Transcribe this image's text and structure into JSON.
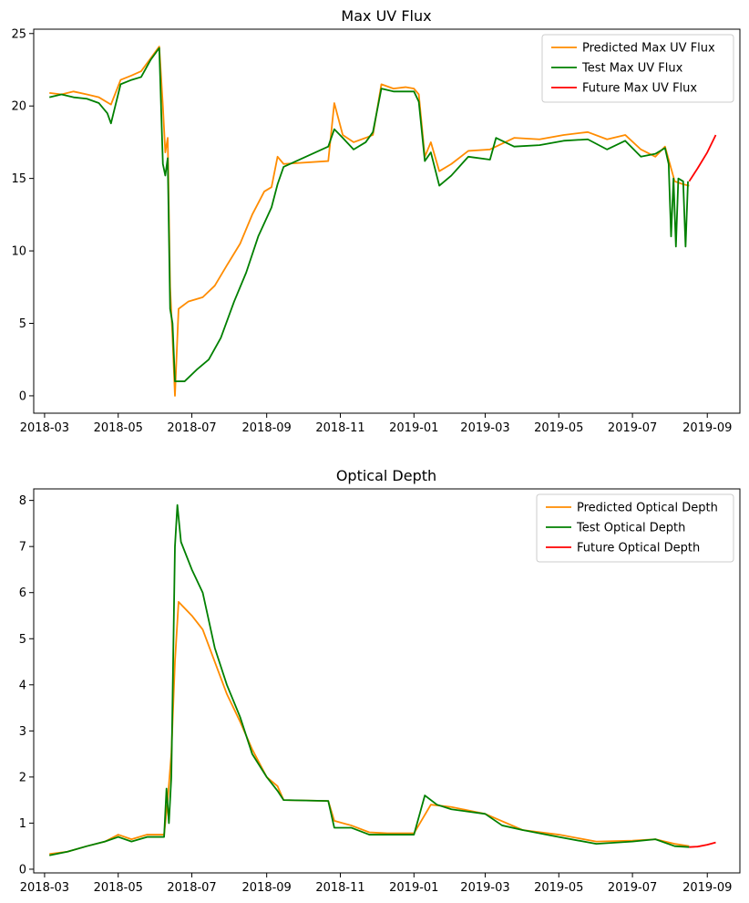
{
  "figure": {
    "charts": [
      {
        "key": "uv",
        "title": "Max UV Flux"
      },
      {
        "key": "od",
        "title": "Optical Depth"
      }
    ]
  },
  "chart_data": [
    {
      "type": "line",
      "title": "Max UV Flux",
      "xlabel": "",
      "ylabel": "",
      "x_axis": "date",
      "xlim": [
        "2018-02-20",
        "2019-09-28"
      ],
      "ylim": [
        -1.2,
        25.3
      ],
      "xticks": [
        "2018-03",
        "2018-05",
        "2018-07",
        "2018-09",
        "2018-11",
        "2019-01",
        "2019-03",
        "2019-05",
        "2019-07",
        "2019-09"
      ],
      "yticks": [
        0,
        5,
        10,
        15,
        20,
        25
      ],
      "legend": "top-right",
      "grid": false,
      "series": [
        {
          "name": "Predicted Max UV Flux",
          "color": "#ff8c00",
          "points": [
            [
              "2018-03-05",
              20.9
            ],
            [
              "2018-03-15",
              20.8
            ],
            [
              "2018-03-25",
              21.0
            ],
            [
              "2018-04-05",
              20.8
            ],
            [
              "2018-04-15",
              20.6
            ],
            [
              "2018-04-25",
              20.1
            ],
            [
              "2018-05-03",
              21.8
            ],
            [
              "2018-05-12",
              22.1
            ],
            [
              "2018-05-20",
              22.4
            ],
            [
              "2018-05-28",
              23.3
            ],
            [
              "2018-06-04",
              24.1
            ],
            [
              "2018-06-07",
              20.0
            ],
            [
              "2018-06-09",
              16.8
            ],
            [
              "2018-06-11",
              17.8
            ],
            [
              "2018-06-13",
              7.5
            ],
            [
              "2018-06-15",
              4.0
            ],
            [
              "2018-06-17",
              0.0
            ],
            [
              "2018-06-20",
              6.0
            ],
            [
              "2018-06-28",
              6.5
            ],
            [
              "2018-07-10",
              6.8
            ],
            [
              "2018-07-20",
              7.6
            ],
            [
              "2018-07-30",
              9.0
            ],
            [
              "2018-08-10",
              10.5
            ],
            [
              "2018-08-20",
              12.5
            ],
            [
              "2018-08-30",
              14.1
            ],
            [
              "2018-09-05",
              14.4
            ],
            [
              "2018-09-10",
              16.5
            ],
            [
              "2018-09-15",
              16.0
            ],
            [
              "2018-10-22",
              16.2
            ],
            [
              "2018-10-27",
              20.2
            ],
            [
              "2018-11-03",
              18.0
            ],
            [
              "2018-11-12",
              17.5
            ],
            [
              "2018-11-22",
              17.8
            ],
            [
              "2018-11-28",
              18.0
            ],
            [
              "2018-12-05",
              21.5
            ],
            [
              "2018-12-15",
              21.2
            ],
            [
              "2018-12-25",
              21.3
            ],
            [
              "2019-01-01",
              21.2
            ],
            [
              "2019-01-05",
              20.8
            ],
            [
              "2019-01-10",
              16.5
            ],
            [
              "2019-01-15",
              17.5
            ],
            [
              "2019-01-22",
              15.5
            ],
            [
              "2019-02-01",
              16.0
            ],
            [
              "2019-02-15",
              16.9
            ],
            [
              "2019-03-05",
              17.0
            ],
            [
              "2019-03-25",
              17.8
            ],
            [
              "2019-04-15",
              17.7
            ],
            [
              "2019-05-05",
              18.0
            ],
            [
              "2019-05-25",
              18.2
            ],
            [
              "2019-06-10",
              17.7
            ],
            [
              "2019-06-25",
              18.0
            ],
            [
              "2019-07-08",
              17.0
            ],
            [
              "2019-07-20",
              16.5
            ],
            [
              "2019-07-28",
              17.2
            ],
            [
              "2019-08-05",
              14.8
            ],
            [
              "2019-08-12",
              14.6
            ],
            [
              "2019-08-17",
              14.5
            ]
          ]
        },
        {
          "name": "Test Max UV Flux",
          "color": "#008000",
          "points": [
            [
              "2018-03-05",
              20.6
            ],
            [
              "2018-03-15",
              20.8
            ],
            [
              "2018-03-25",
              20.6
            ],
            [
              "2018-04-05",
              20.5
            ],
            [
              "2018-04-15",
              20.2
            ],
            [
              "2018-04-22",
              19.5
            ],
            [
              "2018-04-25",
              18.8
            ],
            [
              "2018-05-03",
              21.5
            ],
            [
              "2018-05-12",
              21.8
            ],
            [
              "2018-05-20",
              22.0
            ],
            [
              "2018-05-28",
              23.2
            ],
            [
              "2018-06-04",
              24.0
            ],
            [
              "2018-06-07",
              16.0
            ],
            [
              "2018-06-09",
              15.2
            ],
            [
              "2018-06-11",
              16.4
            ],
            [
              "2018-06-13",
              6.0
            ],
            [
              "2018-06-15",
              5.0
            ],
            [
              "2018-06-17",
              1.0
            ],
            [
              "2018-06-25",
              1.0
            ],
            [
              "2018-07-05",
              1.8
            ],
            [
              "2018-07-15",
              2.5
            ],
            [
              "2018-07-25",
              4.0
            ],
            [
              "2018-08-05",
              6.5
            ],
            [
              "2018-08-15",
              8.5
            ],
            [
              "2018-08-25",
              11.0
            ],
            [
              "2018-09-05",
              13.0
            ],
            [
              "2018-09-10",
              14.6
            ],
            [
              "2018-09-15",
              15.8
            ],
            [
              "2018-10-22",
              17.2
            ],
            [
              "2018-10-27",
              18.4
            ],
            [
              "2018-11-03",
              17.8
            ],
            [
              "2018-11-12",
              17.0
            ],
            [
              "2018-11-22",
              17.5
            ],
            [
              "2018-11-28",
              18.2
            ],
            [
              "2018-12-05",
              21.2
            ],
            [
              "2018-12-15",
              21.0
            ],
            [
              "2018-12-25",
              21.0
            ],
            [
              "2019-01-01",
              21.0
            ],
            [
              "2019-01-05",
              20.3
            ],
            [
              "2019-01-10",
              16.2
            ],
            [
              "2019-01-15",
              16.8
            ],
            [
              "2019-01-22",
              14.5
            ],
            [
              "2019-02-01",
              15.2
            ],
            [
              "2019-02-15",
              16.5
            ],
            [
              "2019-03-05",
              16.3
            ],
            [
              "2019-03-10",
              17.8
            ],
            [
              "2019-03-25",
              17.2
            ],
            [
              "2019-04-15",
              17.3
            ],
            [
              "2019-05-05",
              17.6
            ],
            [
              "2019-05-25",
              17.7
            ],
            [
              "2019-06-10",
              17.0
            ],
            [
              "2019-06-25",
              17.6
            ],
            [
              "2019-07-08",
              16.5
            ],
            [
              "2019-07-20",
              16.7
            ],
            [
              "2019-07-28",
              17.1
            ],
            [
              "2019-07-31",
              16.0
            ],
            [
              "2019-08-02",
              11.0
            ],
            [
              "2019-08-04",
              15.0
            ],
            [
              "2019-08-06",
              10.3
            ],
            [
              "2019-08-08",
              15.0
            ],
            [
              "2019-08-12",
              14.8
            ],
            [
              "2019-08-14",
              10.3
            ],
            [
              "2019-08-16",
              14.8
            ]
          ]
        },
        {
          "name": "Future Max UV Flux",
          "color": "#ff0000",
          "points": [
            [
              "2019-08-17",
              14.8
            ],
            [
              "2019-08-24",
              15.7
            ],
            [
              "2019-09-01",
              16.8
            ],
            [
              "2019-09-08",
              18.0
            ]
          ]
        }
      ]
    },
    {
      "type": "line",
      "title": "Optical Depth",
      "xlabel": "",
      "ylabel": "",
      "x_axis": "date",
      "xlim": [
        "2018-02-20",
        "2019-09-28"
      ],
      "ylim": [
        -0.08,
        8.25
      ],
      "xticks": [
        "2018-03",
        "2018-05",
        "2018-07",
        "2018-09",
        "2018-11",
        "2019-01",
        "2019-03",
        "2019-05",
        "2019-07",
        "2019-09"
      ],
      "yticks": [
        0,
        1,
        2,
        3,
        4,
        5,
        6,
        7,
        8
      ],
      "legend": "top-right",
      "grid": false,
      "series": [
        {
          "name": "Predicted Optical Depth",
          "color": "#ff8c00",
          "points": [
            [
              "2018-03-05",
              0.33
            ],
            [
              "2018-03-20",
              0.38
            ],
            [
              "2018-04-05",
              0.5
            ],
            [
              "2018-04-20",
              0.6
            ],
            [
              "2018-05-01",
              0.75
            ],
            [
              "2018-05-12",
              0.65
            ],
            [
              "2018-05-25",
              0.75
            ],
            [
              "2018-06-08",
              0.75
            ],
            [
              "2018-06-11",
              1.5
            ],
            [
              "2018-06-14",
              2.5
            ],
            [
              "2018-06-17",
              4.5
            ],
            [
              "2018-06-20",
              5.8
            ],
            [
              "2018-07-01",
              5.5
            ],
            [
              "2018-07-10",
              5.2
            ],
            [
              "2018-07-20",
              4.5
            ],
            [
              "2018-07-30",
              3.8
            ],
            [
              "2018-08-10",
              3.2
            ],
            [
              "2018-08-20",
              2.6
            ],
            [
              "2018-09-01",
              2.0
            ],
            [
              "2018-09-10",
              1.8
            ],
            [
              "2018-09-15",
              1.5
            ],
            [
              "2018-10-22",
              1.48
            ],
            [
              "2018-10-27",
              1.05
            ],
            [
              "2018-11-10",
              0.95
            ],
            [
              "2018-11-25",
              0.8
            ],
            [
              "2018-12-10",
              0.78
            ],
            [
              "2019-01-01",
              0.78
            ],
            [
              "2019-01-15",
              1.4
            ],
            [
              "2019-02-01",
              1.35
            ],
            [
              "2019-03-01",
              1.2
            ],
            [
              "2019-04-01",
              0.85
            ],
            [
              "2019-05-01",
              0.75
            ],
            [
              "2019-06-01",
              0.6
            ],
            [
              "2019-07-01",
              0.62
            ],
            [
              "2019-07-20",
              0.65
            ],
            [
              "2019-08-05",
              0.55
            ],
            [
              "2019-08-17",
              0.5
            ]
          ]
        },
        {
          "name": "Test Optical Depth",
          "color": "#008000",
          "points": [
            [
              "2018-03-05",
              0.3
            ],
            [
              "2018-03-20",
              0.38
            ],
            [
              "2018-04-05",
              0.5
            ],
            [
              "2018-04-20",
              0.6
            ],
            [
              "2018-05-01",
              0.7
            ],
            [
              "2018-05-12",
              0.6
            ],
            [
              "2018-05-25",
              0.7
            ],
            [
              "2018-06-08",
              0.7
            ],
            [
              "2018-06-10",
              1.75
            ],
            [
              "2018-06-12",
              1.0
            ],
            [
              "2018-06-14",
              2.0
            ],
            [
              "2018-06-17",
              7.0
            ],
            [
              "2018-06-19",
              7.9
            ],
            [
              "2018-06-22",
              7.1
            ],
            [
              "2018-07-01",
              6.5
            ],
            [
              "2018-07-10",
              6.0
            ],
            [
              "2018-07-20",
              4.8
            ],
            [
              "2018-07-30",
              4.0
            ],
            [
              "2018-08-10",
              3.3
            ],
            [
              "2018-08-20",
              2.5
            ],
            [
              "2018-09-01",
              2.0
            ],
            [
              "2018-09-10",
              1.7
            ],
            [
              "2018-09-15",
              1.5
            ],
            [
              "2018-10-22",
              1.48
            ],
            [
              "2018-10-27",
              0.9
            ],
            [
              "2018-11-10",
              0.9
            ],
            [
              "2018-11-25",
              0.75
            ],
            [
              "2018-12-10",
              0.75
            ],
            [
              "2019-01-01",
              0.75
            ],
            [
              "2019-01-10",
              1.6
            ],
            [
              "2019-01-20",
              1.4
            ],
            [
              "2019-02-01",
              1.3
            ],
            [
              "2019-03-01",
              1.2
            ],
            [
              "2019-03-15",
              0.95
            ],
            [
              "2019-04-01",
              0.85
            ],
            [
              "2019-05-01",
              0.7
            ],
            [
              "2019-06-01",
              0.55
            ],
            [
              "2019-07-01",
              0.6
            ],
            [
              "2019-07-20",
              0.65
            ],
            [
              "2019-08-05",
              0.5
            ],
            [
              "2019-08-17",
              0.48
            ]
          ]
        },
        {
          "name": "Future Optical Depth",
          "color": "#ff0000",
          "points": [
            [
              "2019-08-17",
              0.48
            ],
            [
              "2019-08-24",
              0.49
            ],
            [
              "2019-09-01",
              0.53
            ],
            [
              "2019-09-08",
              0.58
            ]
          ]
        }
      ]
    }
  ]
}
